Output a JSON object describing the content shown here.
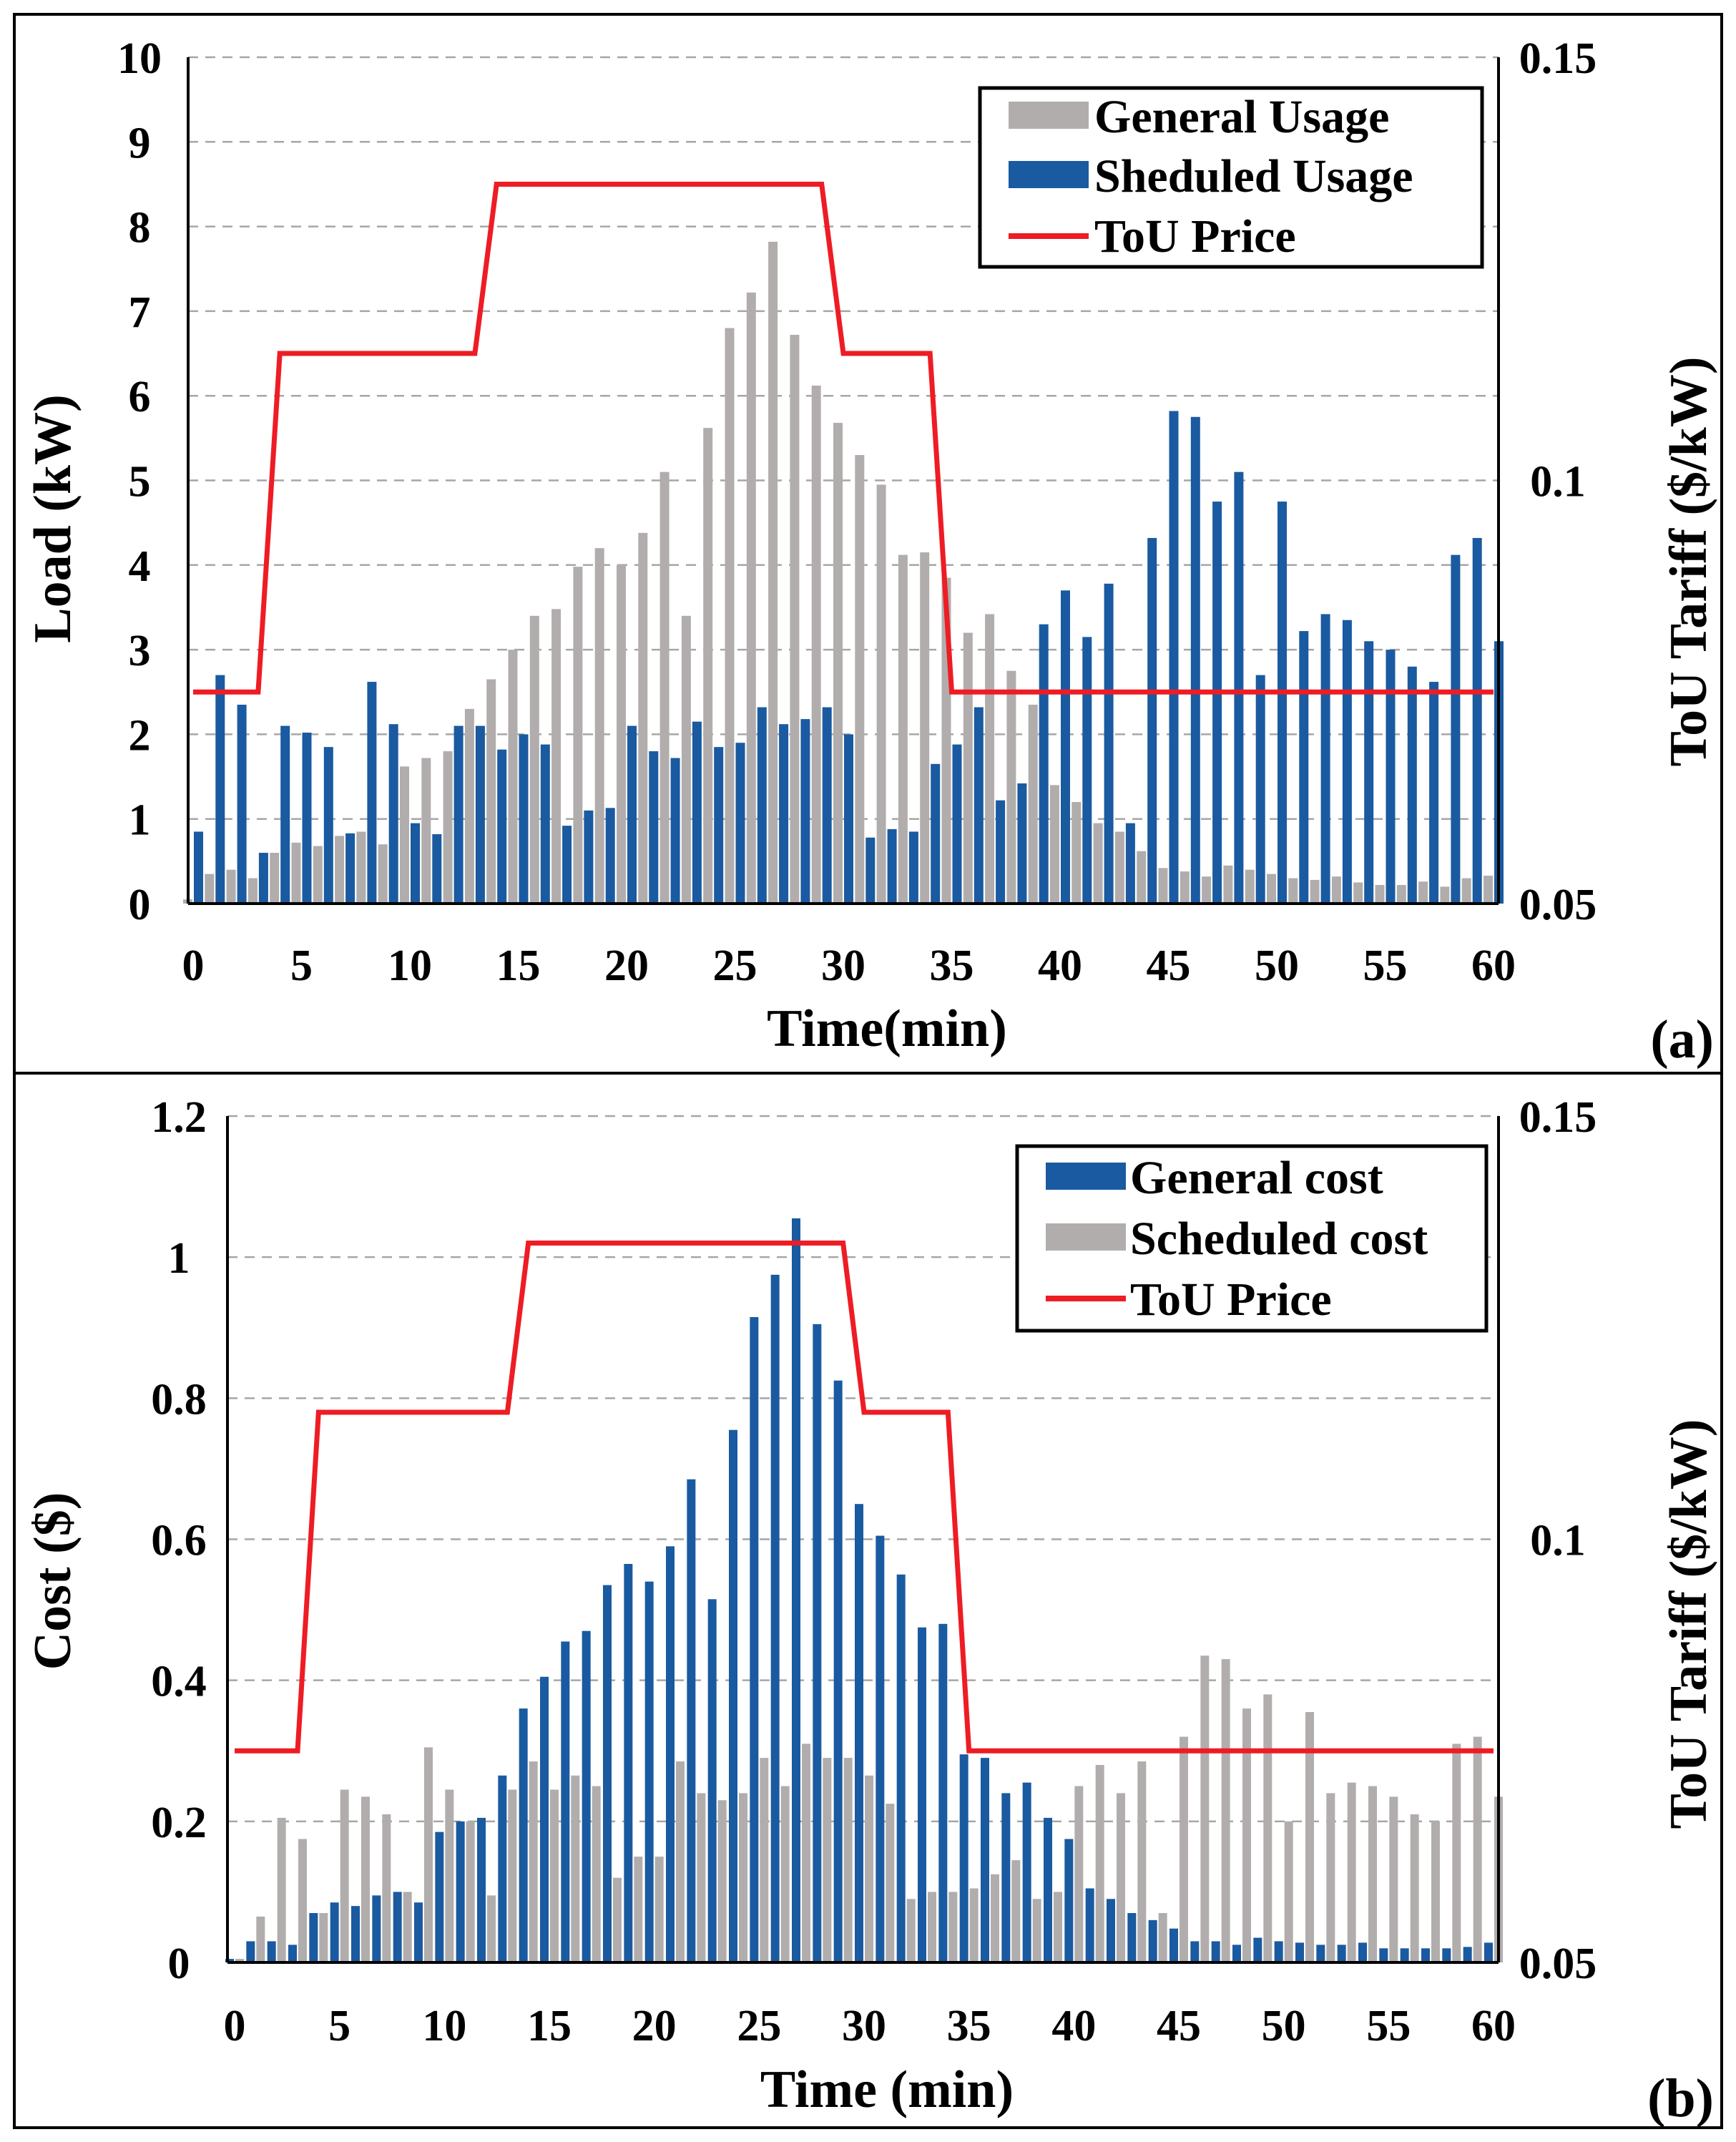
{
  "chart_data": [
    {
      "id": "a",
      "type": "bar",
      "panel_label": "(a)",
      "xlabel": "Time(min)",
      "ylabel": "Load (kW)",
      "y2label": "ToU Tariff ($/kW)",
      "ylim": [
        0,
        10
      ],
      "y2lim": [
        0.05,
        0.15
      ],
      "xlim": [
        0,
        60
      ],
      "yticks": [
        "0",
        "1",
        "2",
        "3",
        "4",
        "5",
        "6",
        "7",
        "8",
        "9",
        "10"
      ],
      "y2ticks": [
        "0.05",
        "0.1",
        "0.15"
      ],
      "xticks": [
        "0",
        "5",
        "10",
        "15",
        "20",
        "25",
        "30",
        "35",
        "40",
        "45",
        "50",
        "55",
        "60"
      ],
      "grid": true,
      "legend_position": "top-right",
      "minutes": [
        0,
        1,
        2,
        3,
        4,
        5,
        6,
        7,
        8,
        9,
        10,
        11,
        12,
        13,
        14,
        15,
        16,
        17,
        18,
        19,
        20,
        21,
        22,
        23,
        24,
        25,
        26,
        27,
        28,
        29,
        30,
        31,
        32,
        33,
        34,
        35,
        36,
        37,
        38,
        39,
        40,
        41,
        42,
        43,
        44,
        45,
        46,
        47,
        48,
        49,
        50,
        51,
        52,
        53,
        54,
        55,
        56,
        57,
        58,
        59,
        60
      ],
      "series": [
        {
          "name": "General Usage",
          "color": "#b2adad",
          "kind": "bar",
          "values": [
            0.05,
            0.35,
            0.4,
            0.3,
            0.6,
            0.72,
            0.68,
            0.8,
            0.85,
            0.7,
            1.62,
            1.72,
            1.8,
            2.3,
            2.65,
            3.0,
            3.4,
            3.48,
            3.98,
            4.2,
            4.0,
            4.38,
            5.1,
            3.4,
            5.62,
            6.8,
            7.22,
            7.82,
            6.72,
            6.12,
            5.68,
            5.3,
            4.95,
            4.12,
            4.15,
            3.85,
            3.2,
            3.42,
            2.75,
            2.35,
            1.4,
            1.2,
            0.95,
            0.85,
            0.62,
            0.42,
            0.38,
            0.32,
            0.45,
            0.4,
            0.35,
            0.3,
            0.28,
            0.32,
            0.25,
            0.22,
            0.22,
            0.26,
            0.2,
            0.3,
            0.33
          ]
        },
        {
          "name": "Sheduled Usage",
          "color": "#1a5aa0",
          "kind": "bar",
          "values": [
            0.85,
            2.7,
            2.35,
            0.6,
            2.1,
            2.02,
            1.85,
            0.83,
            2.62,
            2.12,
            0.95,
            0.82,
            2.1,
            2.1,
            1.82,
            2.0,
            1.88,
            0.92,
            1.1,
            1.13,
            2.1,
            1.8,
            1.72,
            2.15,
            1.85,
            1.9,
            2.32,
            2.12,
            2.18,
            2.32,
            2.0,
            0.78,
            0.88,
            0.85,
            1.65,
            1.88,
            2.32,
            1.22,
            1.42,
            3.3,
            3.7,
            3.15,
            3.78,
            0.95,
            4.32,
            5.82,
            5.75,
            4.75,
            5.1,
            2.7,
            4.75,
            3.22,
            3.42,
            3.35,
            3.1,
            3.0,
            2.8,
            2.62,
            4.12,
            4.32,
            3.1
          ]
        },
        {
          "name": "ToU Price",
          "color": "#ee1c24",
          "kind": "line",
          "points": [
            [
              0,
              0.075
            ],
            [
              3,
              0.075
            ],
            [
              4,
              0.115
            ],
            [
              13,
              0.115
            ],
            [
              14,
              0.135
            ],
            [
              29,
              0.135
            ],
            [
              30,
              0.115
            ],
            [
              34,
              0.115
            ],
            [
              35,
              0.075
            ],
            [
              60,
              0.075
            ]
          ]
        }
      ]
    },
    {
      "id": "b",
      "type": "bar",
      "panel_label": "(b)",
      "xlabel": "Time (min)",
      "ylabel": "Cost ($)",
      "y2label": "ToU Tariff ($/kW)",
      "ylim": [
        0,
        1.2
      ],
      "y2lim": [
        0.05,
        0.15
      ],
      "xlim": [
        0,
        60
      ],
      "yticks": [
        "0",
        "0.2",
        "0.4",
        "0.6",
        "0.8",
        "1",
        "1.2"
      ],
      "y2ticks": [
        "0.05",
        "0.1",
        "0.15"
      ],
      "xticks": [
        "0",
        "5",
        "10",
        "15",
        "20",
        "25",
        "30",
        "35",
        "40",
        "45",
        "50",
        "55",
        "60"
      ],
      "grid": true,
      "legend_position": "top-right",
      "minutes": [
        0,
        1,
        2,
        3,
        4,
        5,
        6,
        7,
        8,
        9,
        10,
        11,
        12,
        13,
        14,
        15,
        16,
        17,
        18,
        19,
        20,
        21,
        22,
        23,
        24,
        25,
        26,
        27,
        28,
        29,
        30,
        31,
        32,
        33,
        34,
        35,
        36,
        37,
        38,
        39,
        40,
        41,
        42,
        43,
        44,
        45,
        46,
        47,
        48,
        49,
        50,
        51,
        52,
        53,
        54,
        55,
        56,
        57,
        58,
        59,
        60
      ],
      "series": [
        {
          "name": "General cost",
          "color": "#1a5aa0",
          "kind": "bar",
          "values": [
            0.005,
            0.03,
            0.03,
            0.025,
            0.07,
            0.085,
            0.08,
            0.095,
            0.1,
            0.085,
            0.185,
            0.2,
            0.205,
            0.265,
            0.36,
            0.405,
            0.455,
            0.47,
            0.535,
            0.565,
            0.54,
            0.59,
            0.685,
            0.515,
            0.755,
            0.915,
            0.975,
            1.055,
            0.905,
            0.825,
            0.65,
            0.605,
            0.55,
            0.475,
            0.48,
            0.295,
            0.29,
            0.24,
            0.255,
            0.205,
            0.175,
            0.105,
            0.09,
            0.07,
            0.06,
            0.048,
            0.03,
            0.03,
            0.025,
            0.035,
            0.03,
            0.028,
            0.025,
            0.025,
            0.028,
            0.02,
            0.02,
            0.02,
            0.02,
            0.022,
            0.028
          ]
        },
        {
          "name": "Scheduled cost",
          "color": "#b2adad",
          "kind": "bar",
          "values": [
            0.005,
            0.065,
            0.205,
            0.175,
            0.07,
            0.245,
            0.235,
            0.21,
            0.1,
            0.305,
            0.245,
            0.2,
            0.095,
            0.245,
            0.285,
            0.245,
            0.265,
            0.25,
            0.12,
            0.15,
            0.15,
            0.285,
            0.24,
            0.23,
            0.24,
            0.29,
            0.25,
            0.31,
            0.29,
            0.29,
            0.265,
            0.225,
            0.09,
            0.1,
            0.1,
            0.105,
            0.125,
            0.145,
            0.09,
            0.1,
            0.25,
            0.28,
            0.24,
            0.285,
            0.07,
            0.32,
            0.435,
            0.43,
            0.36,
            0.38,
            0.2,
            0.355,
            0.24,
            0.255,
            0.25,
            0.235,
            0.21,
            0.2,
            0.31,
            0.32,
            0.235
          ]
        },
        {
          "name": "ToU Price",
          "color": "#ee1c24",
          "kind": "line",
          "points": [
            [
              0,
              0.075
            ],
            [
              3,
              0.075
            ],
            [
              4,
              0.115
            ],
            [
              13,
              0.115
            ],
            [
              14,
              0.135
            ],
            [
              29,
              0.135
            ],
            [
              30,
              0.115
            ],
            [
              34,
              0.115
            ],
            [
              35,
              0.075
            ],
            [
              60,
              0.075
            ]
          ]
        }
      ]
    }
  ]
}
